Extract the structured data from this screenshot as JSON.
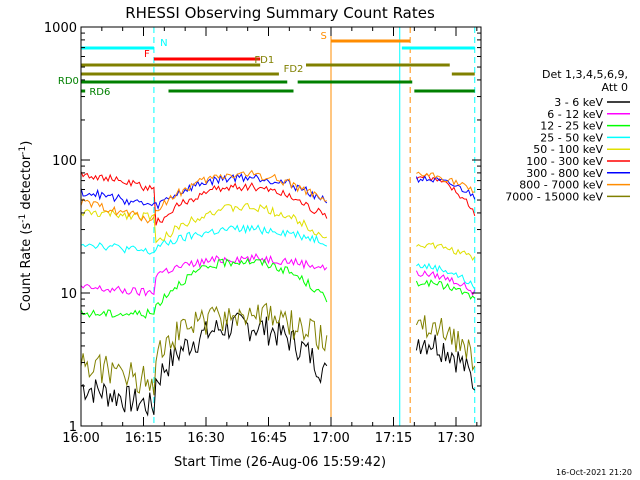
{
  "chart_data": {
    "type": "line",
    "title": "RHESSI Observing Summary Count Rates",
    "xlabel": "Start Time (26-Aug-06 15:59:42)",
    "ylabel_main": "Count Rate (s",
    "ylabel_exp1": "-1",
    "ylabel_mid": " detector",
    "ylabel_exp2": "-1",
    "ylabel_end": ")",
    "yscale": "log",
    "xlim_minutes": [
      0,
      96
    ],
    "ylim": [
      1,
      1000
    ],
    "x_ticks": [
      {
        "m": 0,
        "label": "16:00"
      },
      {
        "m": 15,
        "label": "16:15"
      },
      {
        "m": 30,
        "label": "16:30"
      },
      {
        "m": 45,
        "label": "16:45"
      },
      {
        "m": 60,
        "label": "17:00"
      },
      {
        "m": 75,
        "label": "17:15"
      },
      {
        "m": 90,
        "label": "17:30"
      }
    ],
    "y_ticks": [
      {
        "v": 1,
        "label": "1"
      },
      {
        "v": 10,
        "label": "10"
      },
      {
        "v": 100,
        "label": "100"
      },
      {
        "v": 1000,
        "label": "1000"
      }
    ],
    "legend_position": "right",
    "legend_header": [
      "Det 1,3,4,5,6,9,",
      "Att 0"
    ],
    "timestamp": "16-Oct-2021 21:20",
    "series": [
      {
        "name": "3 - 6 keV",
        "color": "#000000"
      },
      {
        "name": "6 - 12 keV",
        "color": "#ff00ff"
      },
      {
        "name": "12 - 25 keV",
        "color": "#00ff00"
      },
      {
        "name": "25 - 50 keV",
        "color": "#00ffff"
      },
      {
        "name": "50 - 100 keV",
        "color": "#e0e000"
      },
      {
        "name": "100 - 300 keV",
        "color": "#ff0000"
      },
      {
        "name": "300 - 800 keV",
        "color": "#0000ff"
      },
      {
        "name": "800 - 7000 keV",
        "color": "#ff8c00"
      },
      {
        "name": "7000 - 15000 keV",
        "color": "#808000"
      }
    ],
    "vlines": [
      {
        "m": 0,
        "color": "#00ffff",
        "dashed": false
      },
      {
        "m": 17.5,
        "color": "#00ffff",
        "dashed": true
      },
      {
        "m": 60,
        "color": "#ff8c00",
        "dashed": false
      },
      {
        "m": 76.5,
        "color": "#00ffff",
        "dashed": false
      },
      {
        "m": 79,
        "color": "#ff8c00",
        "dashed": true
      },
      {
        "m": 94.5,
        "color": "#00ffff",
        "dashed": true
      }
    ],
    "flag_bars": [
      {
        "label": "N",
        "color": "#00ffff",
        "segments": [
          [
            0,
            17.5
          ],
          [
            77,
            94.5
          ]
        ],
        "label_m": 19,
        "label_side": "right"
      },
      {
        "label": "S",
        "color": "#ff8c00",
        "segments": [
          [
            60,
            79
          ]
        ],
        "label_m": 59,
        "label_side": "left"
      },
      {
        "label": "F",
        "color": "#ff0000",
        "segments": [
          [
            17.5,
            43
          ]
        ],
        "label_m": 16.5,
        "label_side": "left"
      },
      {
        "label": "FD1",
        "color": "#808000",
        "segments": [
          [
            0,
            43
          ],
          [
            54,
            88.5
          ]
        ],
        "label_m": 44,
        "label_side": "center"
      },
      {
        "label": "FD2",
        "color": "#808000",
        "segments": [
          [
            0,
            47.5
          ],
          [
            89,
            94.5
          ]
        ],
        "label_m": 51,
        "label_side": "center"
      },
      {
        "label": "RD0",
        "color": "#008000",
        "segments": [
          [
            0,
            49.5
          ],
          [
            52,
            79.5
          ]
        ],
        "label_m": -0.5,
        "label_side": "left"
      },
      {
        "label": "RD6",
        "color": "#008000",
        "segments": [
          [
            0,
            1
          ],
          [
            21,
            51
          ],
          [
            80,
            94.5
          ]
        ],
        "label_m": 2,
        "label_side": "right"
      }
    ]
  }
}
